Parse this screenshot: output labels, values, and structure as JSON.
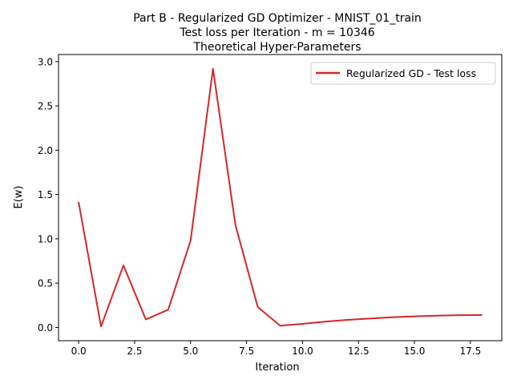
{
  "chart_data": {
    "type": "line",
    "title_lines": [
      "Part B - Regularized GD Optimizer - MNIST_01_train",
      "Test loss per Iteration - m = 10346",
      "Theoretical Hyper-Parameters"
    ],
    "xlabel": "Iteration",
    "ylabel": "E(w)",
    "xlim": [
      -0.9,
      18.9
    ],
    "ylim": [
      -0.15,
      3.08
    ],
    "xticks": [
      0.0,
      2.5,
      5.0,
      7.5,
      10.0,
      12.5,
      15.0,
      17.5
    ],
    "xtick_labels": [
      "0.0",
      "2.5",
      "5.0",
      "7.5",
      "10.0",
      "12.5",
      "15.0",
      "17.5"
    ],
    "yticks": [
      0.0,
      0.5,
      1.0,
      1.5,
      2.0,
      2.5,
      3.0
    ],
    "ytick_labels": [
      "0.0",
      "0.5",
      "1.0",
      "1.5",
      "2.0",
      "2.5",
      "3.0"
    ],
    "grid": false,
    "legend_position": "upper right",
    "series": [
      {
        "name": "Regularized GD - Test loss",
        "color": "#d62728",
        "x": [
          0,
          1,
          2,
          3,
          4,
          5,
          6,
          7,
          8,
          9,
          10,
          11,
          12,
          13,
          14,
          15,
          16,
          17,
          18
        ],
        "y": [
          1.41,
          0.01,
          0.7,
          0.09,
          0.2,
          0.98,
          2.92,
          1.16,
          0.23,
          0.02,
          0.04,
          0.065,
          0.085,
          0.1,
          0.115,
          0.125,
          0.133,
          0.138,
          0.14
        ]
      }
    ]
  }
}
